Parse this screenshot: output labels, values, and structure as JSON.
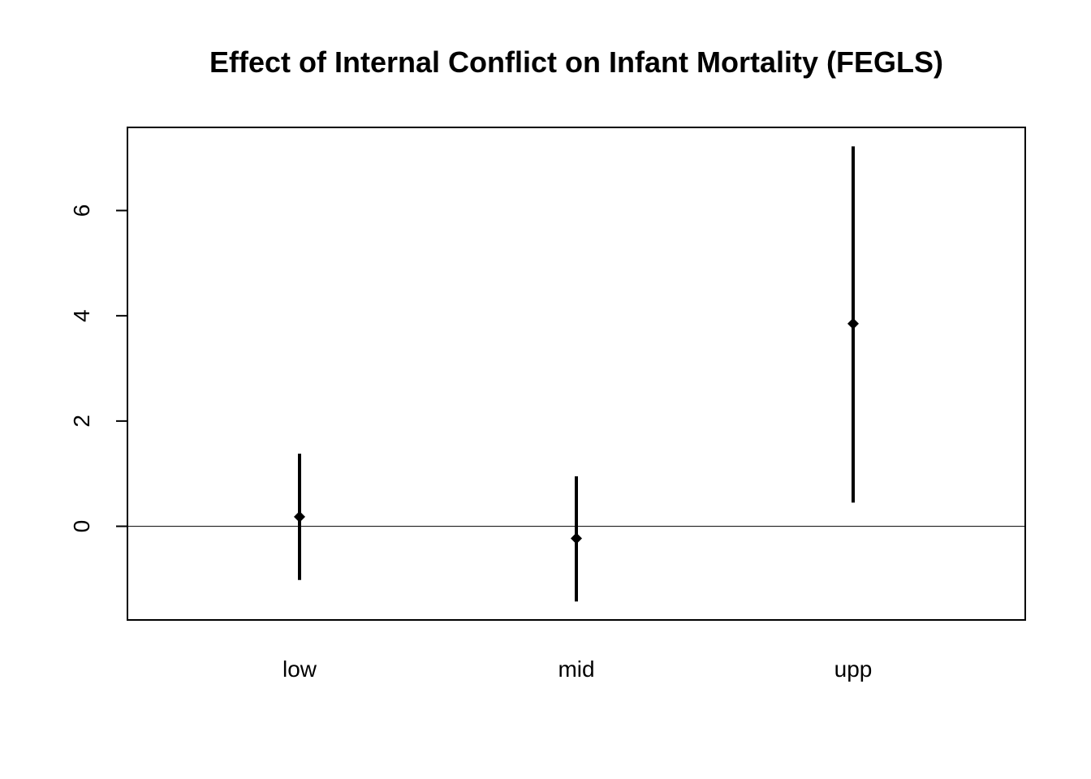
{
  "chart_data": {
    "type": "scatter",
    "title": "Effect of Internal Conflict on Infant Mortality (FEGLS)",
    "xlabel": "",
    "ylabel": "",
    "categories": [
      "low",
      "mid",
      "upp"
    ],
    "estimates": [
      0.18,
      -0.23,
      3.85
    ],
    "lower": [
      -1.02,
      -1.43,
      0.45
    ],
    "upper": [
      1.38,
      0.95,
      7.22
    ],
    "yticks": [
      0,
      2,
      4,
      6
    ],
    "ylim": [
      -1.78,
      7.58
    ],
    "reference_line": 0,
    "grid": false,
    "legend": "none",
    "colors": {
      "marks": "#000000",
      "background": "#ffffff"
    }
  }
}
